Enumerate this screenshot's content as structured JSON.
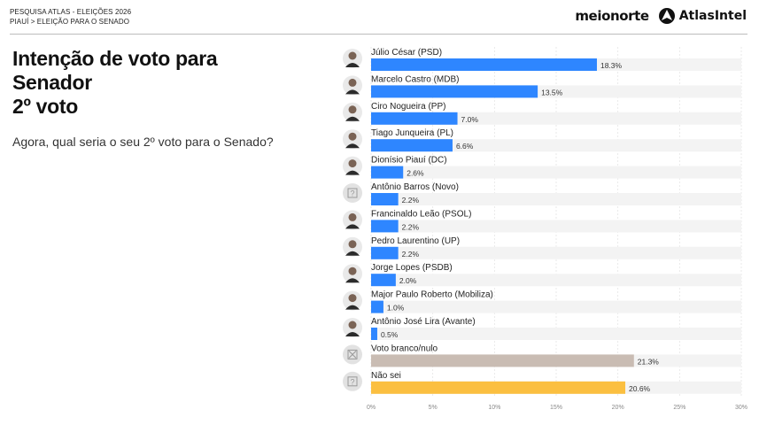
{
  "header": {
    "survey_line": "PESQUISA ATLAS - ELEIÇÕES 2026",
    "breadcrumb": "PIAUÍ > ELEIÇÃO PARA O SENADO",
    "brand_left": "meionorte",
    "brand_right": "AtlasIntel"
  },
  "colors": {
    "bar_default": "#2e86ff",
    "bar_blank_null": "#c9bcb3",
    "bar_dont_know": "#fbbf40",
    "track": "#f3f3f3",
    "grid": "#e4e4e4"
  },
  "chart_data": {
    "type": "bar",
    "orientation": "horizontal",
    "title_lines": [
      "Intenção de voto para",
      "Senador",
      "2º voto"
    ],
    "subtitle": "Agora, qual seria o seu 2º voto para o Senado?",
    "categories": [
      "Júlio César (PSD)",
      "Marcelo Castro (MDB)",
      "Ciro Nogueira (PP)",
      "Tiago Junqueira (PL)",
      "Dionísio Piauí (DC)",
      "Antônio Barros (Novo)",
      "Francinaldo Leão (PSOL)",
      "Pedro Laurentino (UP)",
      "Jorge Lopes (PSDB)",
      "Major Paulo Roberto (Mobiliza)",
      "Antônio José Lira (Avante)",
      "Voto branco/nulo",
      "Não sei"
    ],
    "values": [
      18.3,
      13.5,
      7.0,
      6.6,
      2.6,
      2.2,
      2.2,
      2.2,
      2.0,
      1.0,
      0.5,
      21.3,
      20.6
    ],
    "value_labels": [
      "18.3%",
      "13.5%",
      "7.0%",
      "6.6%",
      "2.6%",
      "2.2%",
      "2.2%",
      "2.2%",
      "2.0%",
      "1.0%",
      "0.5%",
      "21.3%",
      "20.6%"
    ],
    "icons": [
      "candidate-photo-icon",
      "candidate-photo-icon",
      "candidate-photo-icon",
      "candidate-photo-icon",
      "candidate-photo-icon",
      "unknown-photo-icon",
      "candidate-photo-icon",
      "candidate-photo-icon",
      "candidate-photo-icon",
      "candidate-photo-icon",
      "candidate-photo-icon",
      "blank-null-icon",
      "unknown-photo-icon"
    ],
    "x_ticks": [
      "0%",
      "5%",
      "10%",
      "15%",
      "20%",
      "25%",
      "30%"
    ],
    "xlim": [
      0,
      30
    ],
    "grid": true
  }
}
